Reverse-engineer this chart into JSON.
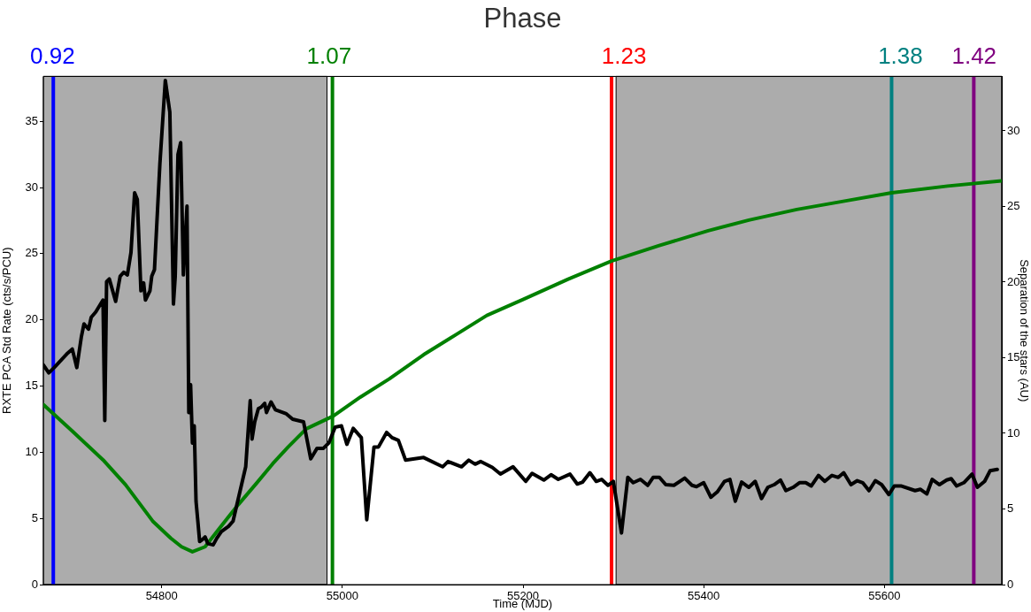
{
  "chart_data": {
    "type": "line",
    "xlabel": "Time (MJD)",
    "ylabel": "RXTE PCA Std Rate (cts/s/PCU)",
    "y2label": "Separation of the stars (AU)",
    "xlim": [
      54669,
      55730
    ],
    "xticks": [
      54800,
      55000,
      55200,
      55400,
      55600
    ],
    "title": null,
    "ylim": [
      0,
      38.4
    ],
    "yticks": [
      0,
      5,
      10,
      15,
      20,
      25,
      30,
      35
    ],
    "y2lim": [
      0,
      33.6
    ],
    "y2ticks": [
      0,
      5,
      10,
      15,
      20,
      25,
      30
    ],
    "series": [
      {
        "color": "#000000",
        "x": [
          54669,
          54675,
          54681,
          54696,
          54701,
          54706,
          54711,
          54714,
          54719,
          54722,
          54727,
          54735,
          54737,
          54739,
          54742,
          54749,
          54754,
          54758,
          54762,
          54766,
          54770,
          54773,
          54777,
          54780,
          54782,
          54787,
          54789,
          54792,
          54798,
          54804,
          54809,
          54813,
          54815,
          54818,
          54821,
          54824,
          54828,
          54830,
          54832,
          54834,
          54836,
          54838,
          54840,
          54842,
          54845,
          54848,
          54851,
          54857,
          54861,
          54866,
          54874,
          54879,
          54893,
          54898,
          54900,
          54903,
          54907,
          54910,
          54914,
          54916,
          54921,
          54926,
          54938,
          54945,
          54957,
          54965,
          54972,
          54979,
          54985,
          54992,
          54999,
          55005,
          55012,
          55021,
          55027,
          55035,
          55040,
          55049,
          55055,
          55062,
          55070,
          55090,
          55111,
          55117,
          55132,
          55140,
          55147,
          55153,
          55166,
          55175,
          55189,
          55203,
          55210,
          55223,
          55231,
          55239,
          55252,
          55260,
          55266,
          55274,
          55281,
          55287,
          55294,
          55300,
          55309,
          55316,
          55322,
          55330,
          55338,
          55344,
          55351,
          55358,
          55367,
          55379,
          55387,
          55392,
          55400,
          55408,
          55415,
          55423,
          55429,
          55435,
          55442,
          55450,
          55457,
          55464,
          55471,
          55478,
          55485,
          55491,
          55499,
          55506,
          55513,
          55519,
          55527,
          55534,
          55542,
          55549,
          55555,
          55563,
          55570,
          55576,
          55583,
          55590,
          55597,
          55605,
          55611,
          55619,
          55634,
          55640,
          55647,
          55653,
          55661,
          55669,
          55674,
          55680,
          55688,
          55697,
          55703,
          55711,
          55717,
          55725
        ],
        "values": [
          16.6,
          16.0,
          16.4,
          17.5,
          17.8,
          16.4,
          18.7,
          19.7,
          19.3,
          20.2,
          20.6,
          21.5,
          12.4,
          22.9,
          23.1,
          21.4,
          23.3,
          23.6,
          23.4,
          25.1,
          29.6,
          29.1,
          22.2,
          22.8,
          21.5,
          22.2,
          23.3,
          23.8,
          31.8,
          38.1,
          35.7,
          21.2,
          23.3,
          32.5,
          33.4,
          23.4,
          28.6,
          13.0,
          15.1,
          10.7,
          12.0,
          6.3,
          4.8,
          3.25,
          3.4,
          3.6,
          3.1,
          3.0,
          3.5,
          4.0,
          4.4,
          4.8,
          8.9,
          13.9,
          11.0,
          12.3,
          13.3,
          13.4,
          13.7,
          13.0,
          13.8,
          13.2,
          12.9,
          12.5,
          12.3,
          9.5,
          10.3,
          10.3,
          10.7,
          11.9,
          12.0,
          10.6,
          11.8,
          11.1,
          4.9,
          10.4,
          10.4,
          11.5,
          11.1,
          10.9,
          9.4,
          9.6,
          8.9,
          9.3,
          8.9,
          9.4,
          9.1,
          9.3,
          8.85,
          8.35,
          8.9,
          7.8,
          8.4,
          7.9,
          8.3,
          7.95,
          8.35,
          7.6,
          7.75,
          8.45,
          7.8,
          7.95,
          7.5,
          7.8,
          3.9,
          8.1,
          7.7,
          7.95,
          7.5,
          8.1,
          8.1,
          7.55,
          7.5,
          8.05,
          7.5,
          7.4,
          7.7,
          6.6,
          7.0,
          7.8,
          7.95,
          6.3,
          7.75,
          7.35,
          7.8,
          6.5,
          7.35,
          7.55,
          7.9,
          7.1,
          7.35,
          7.7,
          7.7,
          7.45,
          8.25,
          7.8,
          8.25,
          8.1,
          8.45,
          7.55,
          7.85,
          7.7,
          7.1,
          7.85,
          7.55,
          6.8,
          7.45,
          7.45,
          7.1,
          7.2,
          6.85,
          7.95,
          7.55,
          7.9,
          8.0,
          7.45,
          7.7,
          8.35,
          7.35,
          7.8,
          8.6,
          8.7
        ]
      },
      {
        "color": "#008000",
        "axis": "y2",
        "x": [
          54669,
          54700,
          54735,
          54760,
          54790,
          54810,
          54822,
          54834,
          54848,
          54865,
          54885,
          54905,
          54923,
          54940,
          54960,
          54990,
          55020,
          55052,
          55090,
          55125,
          55160,
          55200,
          55250,
          55298,
          55350,
          55405,
          55450,
          55503,
          55560,
          55608,
          55670,
          55730
        ],
        "values": [
          11.9,
          10.2,
          8.25,
          6.6,
          4.2,
          3.07,
          2.5,
          2.17,
          2.5,
          3.8,
          5.3,
          6.7,
          8.0,
          9.1,
          10.3,
          11.15,
          12.4,
          13.6,
          15.2,
          16.5,
          17.8,
          18.85,
          20.2,
          21.4,
          22.4,
          23.4,
          24.1,
          24.8,
          25.4,
          25.9,
          26.35,
          26.7
        ]
      }
    ],
    "x2label": "Phase",
    "x2lim": [
      0.915,
      1.435
    ],
    "x2ticks": [
      0.92,
      1.07,
      1.23,
      1.38,
      1.42
    ],
    "bands": [
      {
        "axis": "x",
        "from": 54669,
        "to": 54983,
        "color": "#acacac"
      },
      {
        "axis": "x",
        "from": 55303,
        "to": 55730,
        "color": "#acacac"
      }
    ],
    "ref_lines": [
      {
        "axis": "x",
        "value": 54680,
        "color": "#0000ff"
      },
      {
        "axis": "x",
        "value": 54989,
        "color": "#008000"
      },
      {
        "axis": "x",
        "value": 55298,
        "color": "#ff0000"
      },
      {
        "axis": "x",
        "value": 55608,
        "color": "#008080"
      },
      {
        "axis": "x",
        "value": 55699,
        "color": "#800080"
      }
    ],
    "grid": false,
    "legend": false,
    "marker": "none",
    "line_style": "solid"
  }
}
